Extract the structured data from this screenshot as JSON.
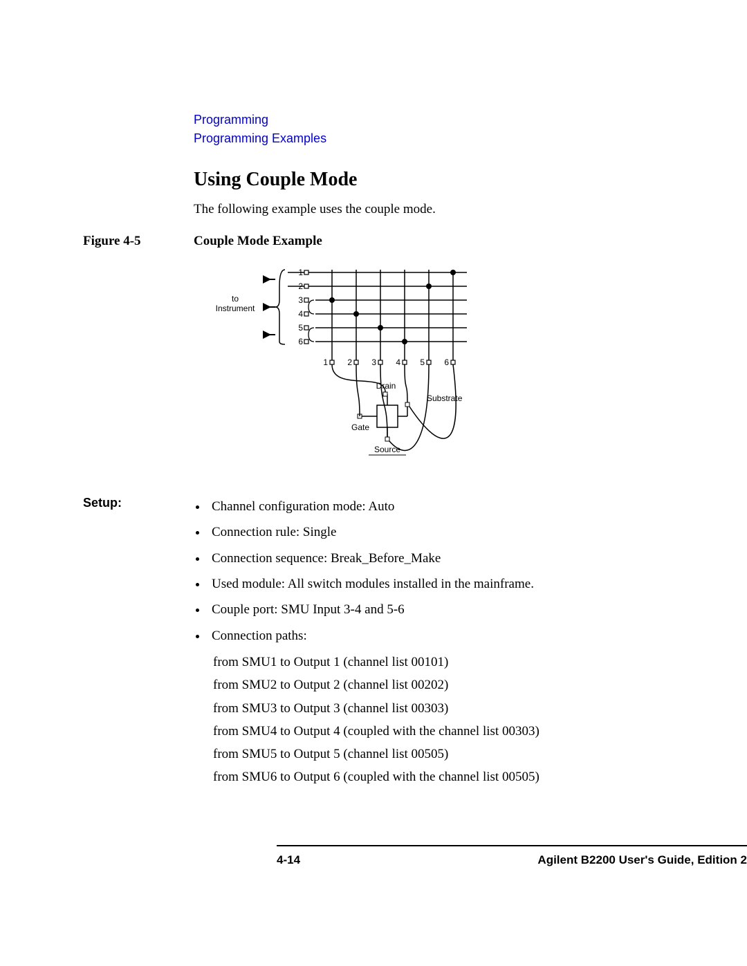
{
  "breadcrumb": {
    "line1": "Programming",
    "line2": "Programming Examples",
    "color": "#0000d0",
    "font_family": "Arial",
    "font_size": 18
  },
  "section": {
    "title": "Using Couple Mode",
    "title_fontsize": 28,
    "title_fontweight": "bold",
    "intro": "The following example uses the couple mode."
  },
  "figure": {
    "label": "Figure 4-5",
    "caption": "Couple Mode Example"
  },
  "diagram": {
    "type": "schematic",
    "background": "#ffffff",
    "stroke": "#000000",
    "row_labels": [
      "1",
      "2",
      "3",
      "4",
      "5",
      "6"
    ],
    "col_labels": [
      "1",
      "2",
      "3",
      "4",
      "5",
      "6"
    ],
    "left_label": "to\nInstrument",
    "left_label_font": "Arial",
    "left_label_fontsize": 12,
    "device_labels": {
      "drain": "Drain",
      "gate": "Gate",
      "source": "Source",
      "substrate": "Substrate"
    },
    "dots": [
      {
        "row": 1,
        "col": 6
      },
      {
        "row": 2,
        "col": 5
      },
      {
        "row": 3,
        "col": 1
      },
      {
        "row": 4,
        "col": 2
      },
      {
        "row": 5,
        "col": 3
      },
      {
        "row": 6,
        "col": 4
      }
    ],
    "row_groups": [
      [
        1,
        2
      ],
      [
        3,
        4
      ],
      [
        5,
        6
      ]
    ]
  },
  "setup": {
    "label": "Setup:",
    "items": [
      "Channel configuration mode: Auto",
      "Connection rule: Single",
      "Connection sequence: Break_Before_Make",
      "Used module: All switch modules installed in the mainframe.",
      "Couple port: SMU Input 3-4 and 5-6",
      "Connection paths:"
    ],
    "sub_items": [
      "from SMU1 to Output 1 (channel list 00101)",
      "from SMU2 to Output 2 (channel list 00202)",
      "from SMU3 to Output 3 (channel list 00303)",
      "from SMU4 to Output 4 (coupled with the channel list 00303)",
      "from SMU5 to Output 5 (channel list 00505)",
      "from SMU6 to Output 6 (coupled with the channel list 00505)"
    ]
  },
  "footer": {
    "page": "4-14",
    "guide": "Agilent B2200 User's Guide, Edition 2",
    "font_family": "Arial",
    "font_size": 17,
    "font_weight": "bold"
  }
}
